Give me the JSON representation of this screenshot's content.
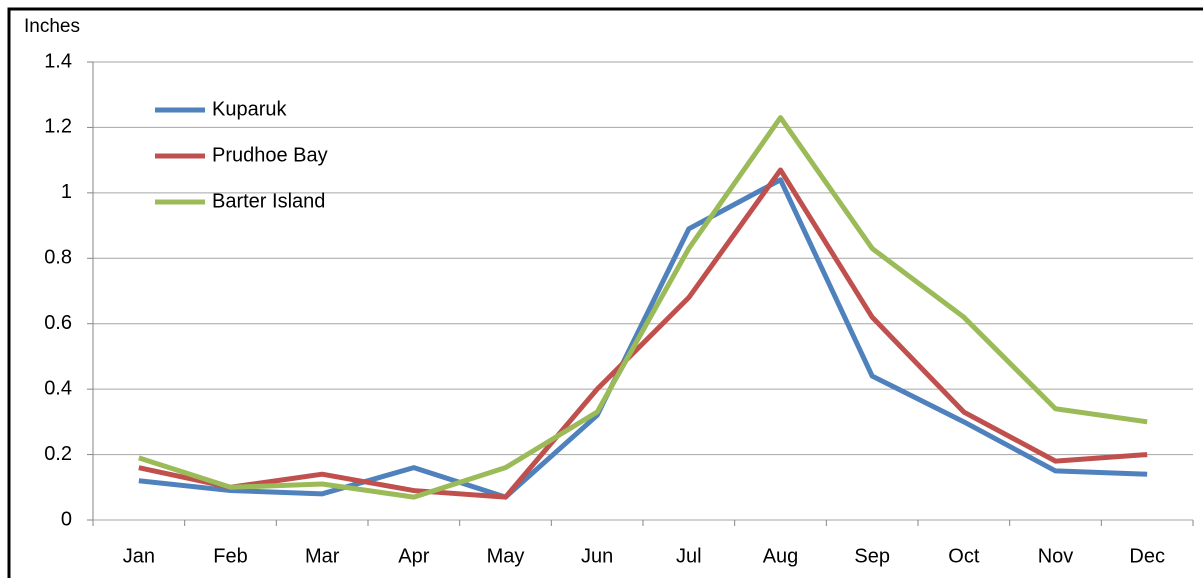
{
  "chart_data": {
    "type": "line",
    "y_label": "Inches",
    "categories": [
      "Jan",
      "Feb",
      "Mar",
      "Apr",
      "May",
      "Jun",
      "Jul",
      "Aug",
      "Sep",
      "Oct",
      "Nov",
      "Dec"
    ],
    "series": [
      {
        "name": "Kuparuk",
        "color": "#4f81bd",
        "values": [
          0.12,
          0.09,
          0.08,
          0.16,
          0.07,
          0.32,
          0.89,
          1.04,
          0.44,
          0.3,
          0.15,
          0.14
        ]
      },
      {
        "name": "Prudhoe Bay",
        "color": "#c0504d",
        "values": [
          0.16,
          0.1,
          0.14,
          0.09,
          0.07,
          0.4,
          0.68,
          1.07,
          0.62,
          0.33,
          0.18,
          0.2
        ]
      },
      {
        "name": "Barter Island",
        "color": "#9bbb59",
        "values": [
          0.19,
          0.1,
          0.11,
          0.07,
          0.16,
          0.33,
          0.83,
          1.23,
          0.83,
          0.62,
          0.34,
          0.3
        ]
      }
    ],
    "ylim": [
      0,
      1.4
    ],
    "yticks": [
      0,
      0.2,
      0.4,
      0.6,
      0.8,
      1,
      1.2,
      1.4
    ],
    "grid": true,
    "legend": "top-left"
  }
}
